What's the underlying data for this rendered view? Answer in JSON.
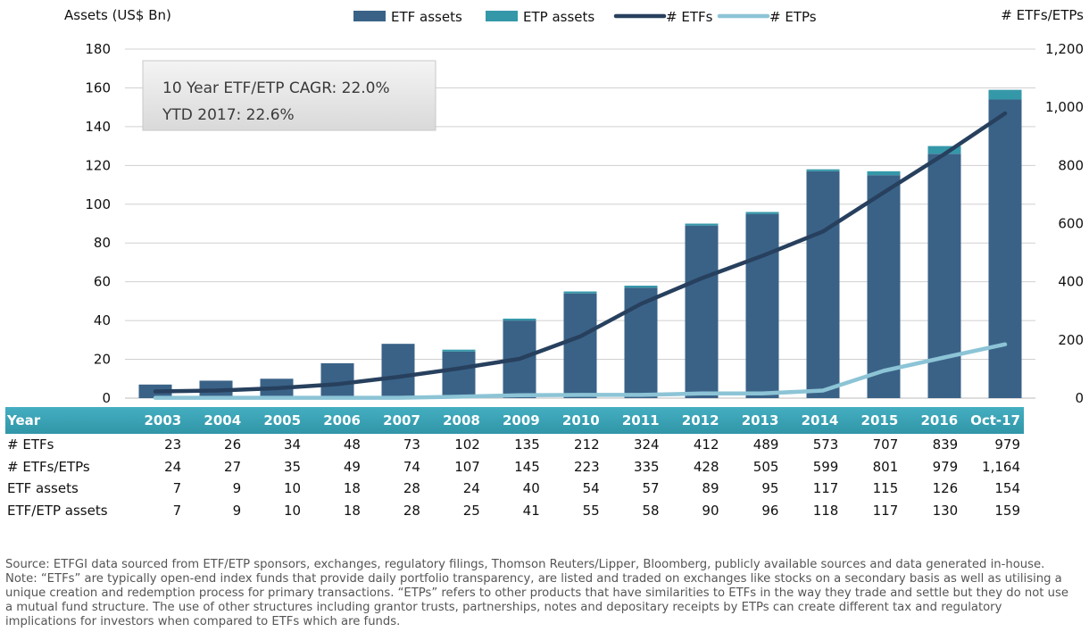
{
  "chart_data": {
    "type": "bar",
    "categories": [
      "2003",
      "2004",
      "2005",
      "2006",
      "2007",
      "2008",
      "2009",
      "2010",
      "2011",
      "2012",
      "2013",
      "2014",
      "2015",
      "2016",
      "Oct-17"
    ],
    "series": [
      {
        "name": "ETF assets",
        "kind": "bar",
        "axis": "left",
        "color": "#3a6287",
        "values": [
          7,
          9,
          10,
          18,
          28,
          24,
          40,
          54,
          57,
          89,
          95,
          117,
          115,
          126,
          154
        ]
      },
      {
        "name": "ETP assets",
        "kind": "bar-stacked",
        "axis": "left",
        "color": "#3598a9",
        "values": [
          0,
          0,
          0,
          0,
          0,
          1,
          1,
          1,
          1,
          1,
          1,
          1,
          2,
          4,
          5
        ]
      },
      {
        "name": "# ETFs",
        "kind": "line",
        "axis": "right",
        "color": "#27405e",
        "values": [
          23,
          26,
          34,
          48,
          73,
          102,
          135,
          212,
          324,
          412,
          489,
          573,
          707,
          839,
          979
        ]
      },
      {
        "name": "# ETPs",
        "kind": "line",
        "axis": "right",
        "color": "#8cc4d6",
        "values": [
          1,
          1,
          1,
          1,
          1,
          5,
          10,
          11,
          11,
          16,
          16,
          26,
          94,
          140,
          185
        ]
      }
    ],
    "ylabel": "Assets (US$ Bn)",
    "y2label": "# ETFs/ETPs",
    "ylim": [
      0,
      180
    ],
    "yticks": [
      0,
      20,
      40,
      60,
      80,
      100,
      120,
      140,
      160,
      180
    ],
    "y2lim": [
      0,
      1200
    ],
    "y2ticks": [
      "0",
      "200",
      "400",
      "600",
      "800",
      "1,000",
      "1,200"
    ],
    "grid": true,
    "legend_position": "top",
    "annotations": [
      "10 Year ETF/ETP CAGR: 22.0%",
      "YTD 2017: 22.6%"
    ]
  },
  "table": {
    "header_label": "Year",
    "rows": [
      {
        "label": "# ETFs",
        "values": [
          "23",
          "26",
          "34",
          "48",
          "73",
          "102",
          "135",
          "212",
          "324",
          "412",
          "489",
          "573",
          "707",
          "839",
          "979"
        ]
      },
      {
        "label": "# ETFs/ETPs",
        "values": [
          "24",
          "27",
          "35",
          "49",
          "74",
          "107",
          "145",
          "223",
          "335",
          "428",
          "505",
          "599",
          "801",
          "979",
          "1,164"
        ]
      },
      {
        "label": "ETF assets",
        "values": [
          "7",
          "9",
          "10",
          "18",
          "28",
          "24",
          "40",
          "54",
          "57",
          "89",
          "95",
          "117",
          "115",
          "126",
          "154"
        ]
      },
      {
        "label": "ETF/ETP assets",
        "values": [
          "7",
          "9",
          "10",
          "18",
          "28",
          "25",
          "41",
          "55",
          "58",
          "90",
          "96",
          "118",
          "117",
          "130",
          "159"
        ]
      }
    ]
  },
  "notes": {
    "source": "Source: ETFGI data sourced from ETF/ETP sponsors, exchanges, regulatory filings, Thomson Reuters/Lipper, Bloomberg, publicly available sources and data generated in-house.",
    "note": "Note: “ETFs” are typically open-end index funds that provide daily portfolio transparency, are listed and traded on exchanges like stocks on a secondary basis as well as utilising a unique creation and redemption process for primary transactions. “ETPs” refers to other products that have similarities to ETFs in the way they trade and settle but they do not use a mutual fund structure. The use of other structures including grantor trusts, partnerships, notes and depositary receipts by ETPs can create different tax and regulatory implications for investors when compared to ETFs which are funds."
  }
}
